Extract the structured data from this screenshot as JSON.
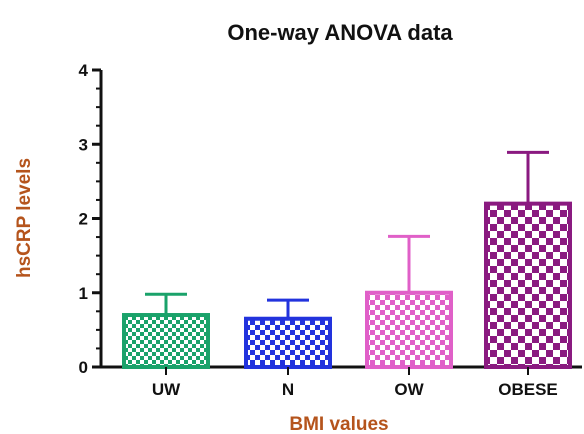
{
  "chart_data": {
    "type": "bar",
    "title": "One-way ANOVA data",
    "xlabel": "BMI values",
    "ylabel": "hsCRP levels",
    "ylim": [
      0,
      4
    ],
    "yticks": [
      "0",
      "1",
      "2",
      "3",
      "4"
    ],
    "categories": [
      "UW",
      "N",
      "OW",
      "OBESE"
    ],
    "values": [
      0.7,
      0.65,
      1.0,
      2.2
    ],
    "error": [
      0.28,
      0.25,
      0.76,
      0.69
    ],
    "colors": [
      "#1aa26a",
      "#2233dd",
      "#e060c8",
      "#8a1a80"
    ],
    "label_color": "#b5541c",
    "grid": false,
    "legend": "none"
  }
}
